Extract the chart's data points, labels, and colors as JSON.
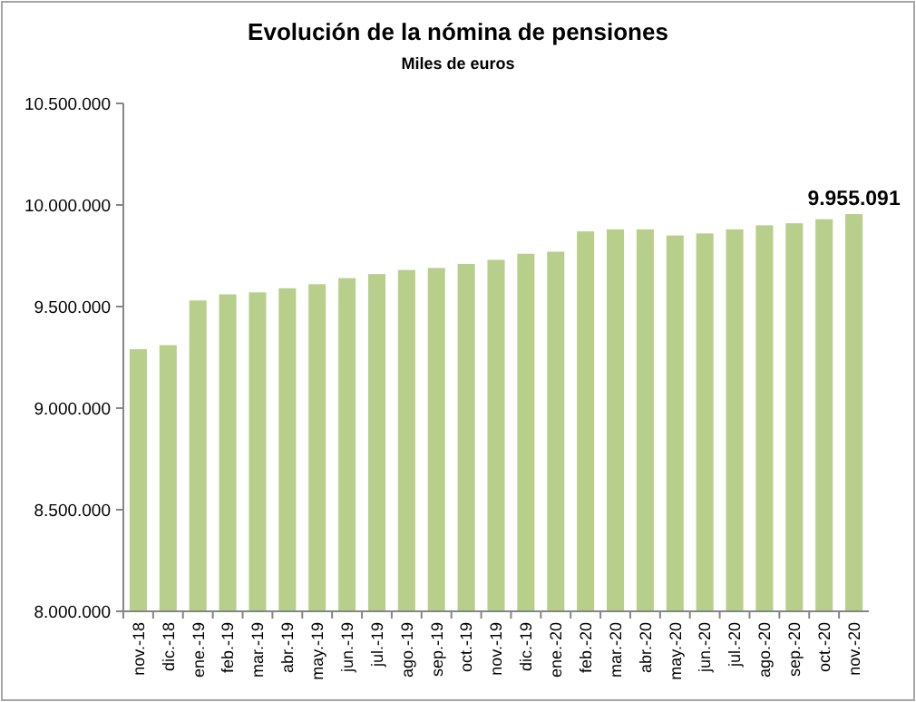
{
  "chart_data": {
    "type": "bar",
    "title": "Evolución de la nómina de pensiones",
    "subtitle": "Miles de euros",
    "categories": [
      "nov.-18",
      "dic.-18",
      "ene.-19",
      "feb.-19",
      "mar.-19",
      "abr.-19",
      "may.-19",
      "jun.-19",
      "jul.-19",
      "ago.-19",
      "sep.-19",
      "oct.-19",
      "nov.-19",
      "dic.-19",
      "ene.-20",
      "feb.-20",
      "mar.-20",
      "abr.-20",
      "may.-20",
      "jun.-20",
      "jul.-20",
      "ago.-20",
      "sep.-20",
      "oct.-20",
      "nov.-20"
    ],
    "values": [
      9290000,
      9310000,
      9530000,
      9560000,
      9570000,
      9590000,
      9610000,
      9640000,
      9660000,
      9680000,
      9690000,
      9710000,
      9730000,
      9760000,
      9770000,
      9870000,
      9880000,
      9880000,
      9850000,
      9860000,
      9880000,
      9900000,
      9910000,
      9930000,
      9955091
    ],
    "value_labels": [
      null,
      null,
      null,
      null,
      null,
      null,
      null,
      null,
      null,
      null,
      null,
      null,
      null,
      null,
      null,
      null,
      null,
      null,
      null,
      null,
      null,
      null,
      null,
      null,
      "9.955.091"
    ],
    "color": "#b8cf8c",
    "ylim": [
      8000000,
      10500000
    ],
    "yticks": [
      {
        "value": 8000000,
        "label": "8.000.000"
      },
      {
        "value": 8500000,
        "label": "8.500.000"
      },
      {
        "value": 9000000,
        "label": "9.000.000"
      },
      {
        "value": 9500000,
        "label": "9.500.000"
      },
      {
        "value": 10000000,
        "label": "10.000.000"
      },
      {
        "value": 10500000,
        "label": "10.500.000"
      }
    ],
    "grid": false
  }
}
